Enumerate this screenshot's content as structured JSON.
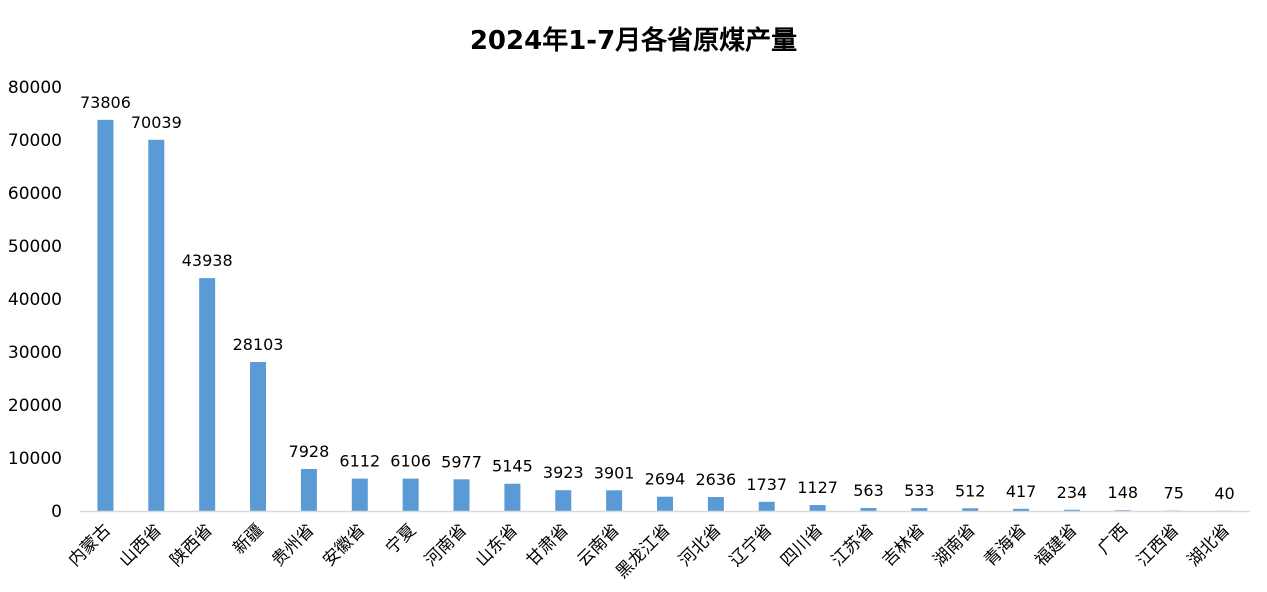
{
  "chart_data": {
    "type": "bar",
    "title": "2024年1-7月各省原煤产量",
    "xlabel": "",
    "ylabel": "",
    "ylim": [
      0,
      80000
    ],
    "yticks": [
      0,
      10000,
      20000,
      30000,
      40000,
      50000,
      60000,
      70000,
      80000
    ],
    "grid": false,
    "legend": "none",
    "bar_color": "#5B9BD5",
    "categories": [
      "内蒙古",
      "山西省",
      "陕西省",
      "新疆",
      "贵州省",
      "安徽省",
      "宁夏",
      "河南省",
      "山东省",
      "甘肃省",
      "云南省",
      "黑龙江省",
      "河北省",
      "辽宁省",
      "四川省",
      "江苏省",
      "吉林省",
      "湖南省",
      "青海省",
      "福建省",
      "广西",
      "江西省",
      "湖北省"
    ],
    "values": [
      73806,
      70039,
      43938,
      28103,
      7928,
      6112,
      6106,
      5977,
      5145,
      3923,
      3901,
      2694,
      2636,
      1737,
      1127,
      563,
      533,
      512,
      417,
      234,
      148,
      75,
      40
    ]
  }
}
